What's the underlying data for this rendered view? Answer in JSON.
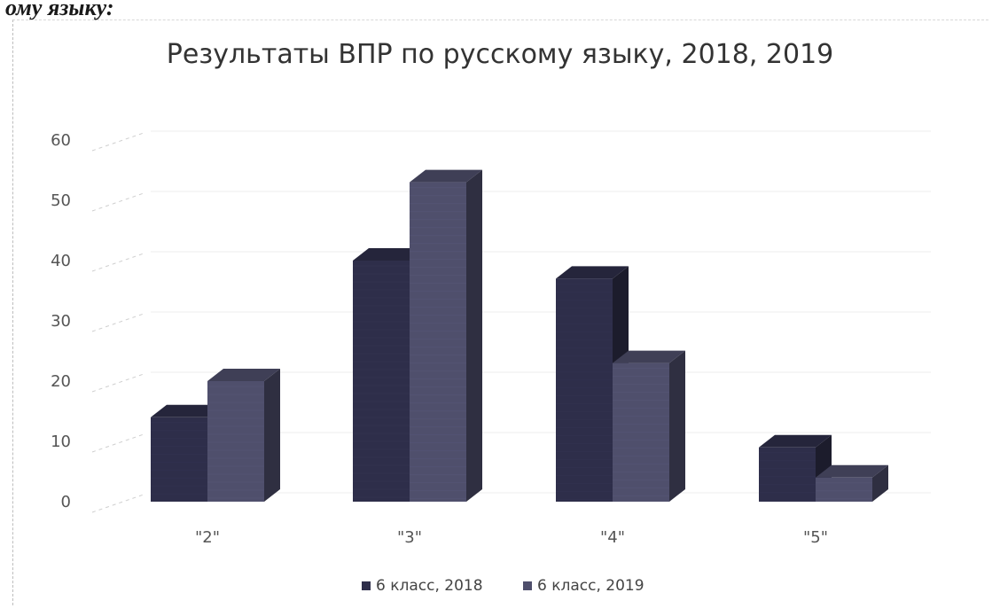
{
  "page": {
    "fragment_text": "ому языку:"
  },
  "chart_data": {
    "type": "bar",
    "title": "Результаты ВПР по русскому языку, 2018, 2019",
    "categories": [
      "\"2\"",
      "\"3\"",
      "\"4\"",
      "\"5\""
    ],
    "series": [
      {
        "name": "6 класс, 2018",
        "values": [
          14,
          40,
          37,
          9
        ],
        "color": "#2e2e4a"
      },
      {
        "name": "6 класс, 2019",
        "values": [
          20,
          53,
          23,
          4
        ],
        "color": "#4f4f6c"
      }
    ],
    "ylim": [
      0,
      60
    ],
    "yticks": [
      0,
      10,
      20,
      30,
      40,
      50,
      60
    ],
    "grid": true,
    "legend": "bottom",
    "style": "3d-column"
  }
}
